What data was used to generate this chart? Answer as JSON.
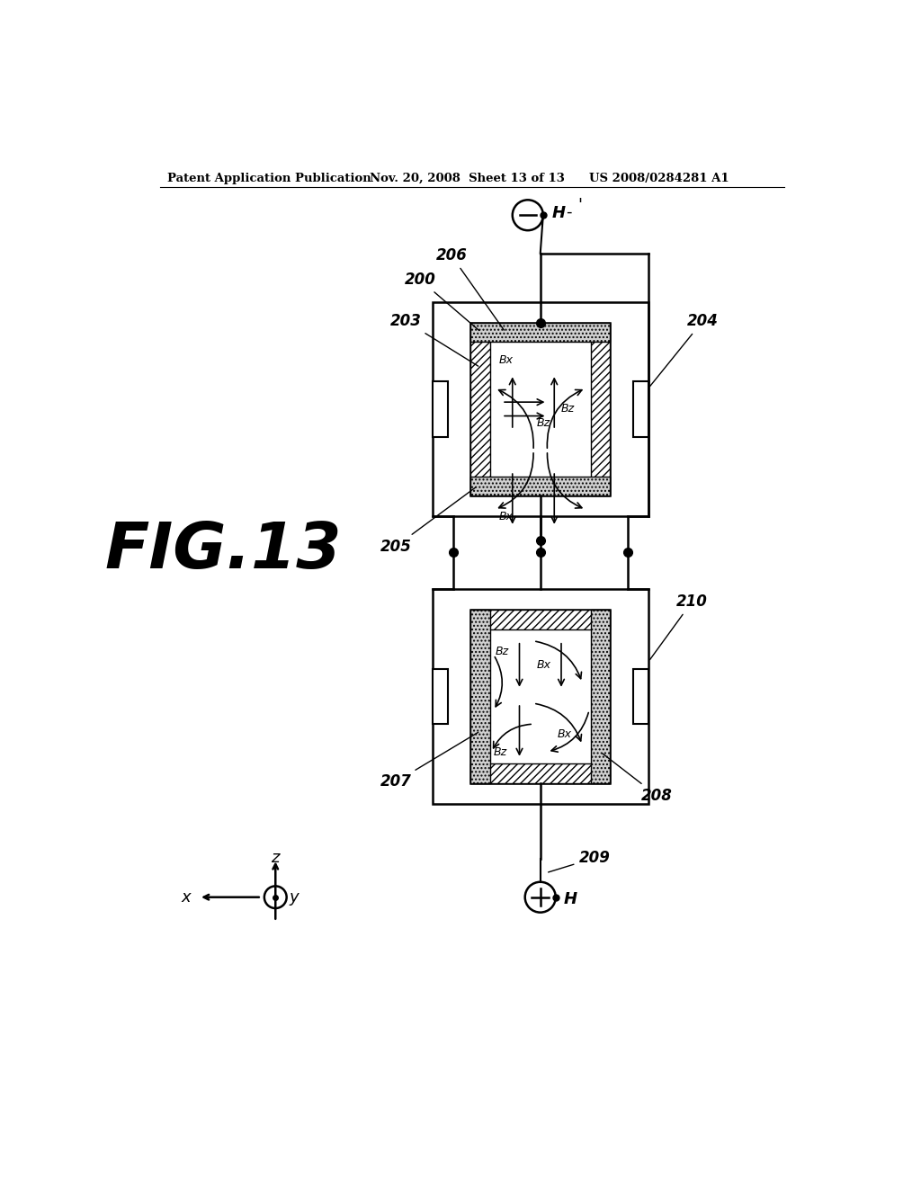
{
  "header_left": "Patent Application Publication",
  "header_mid": "Nov. 20, 2008  Sheet 13 of 13",
  "header_right": "US 2008/0284281 A1",
  "fig_label": "FIG.13",
  "bg_color": "#ffffff"
}
